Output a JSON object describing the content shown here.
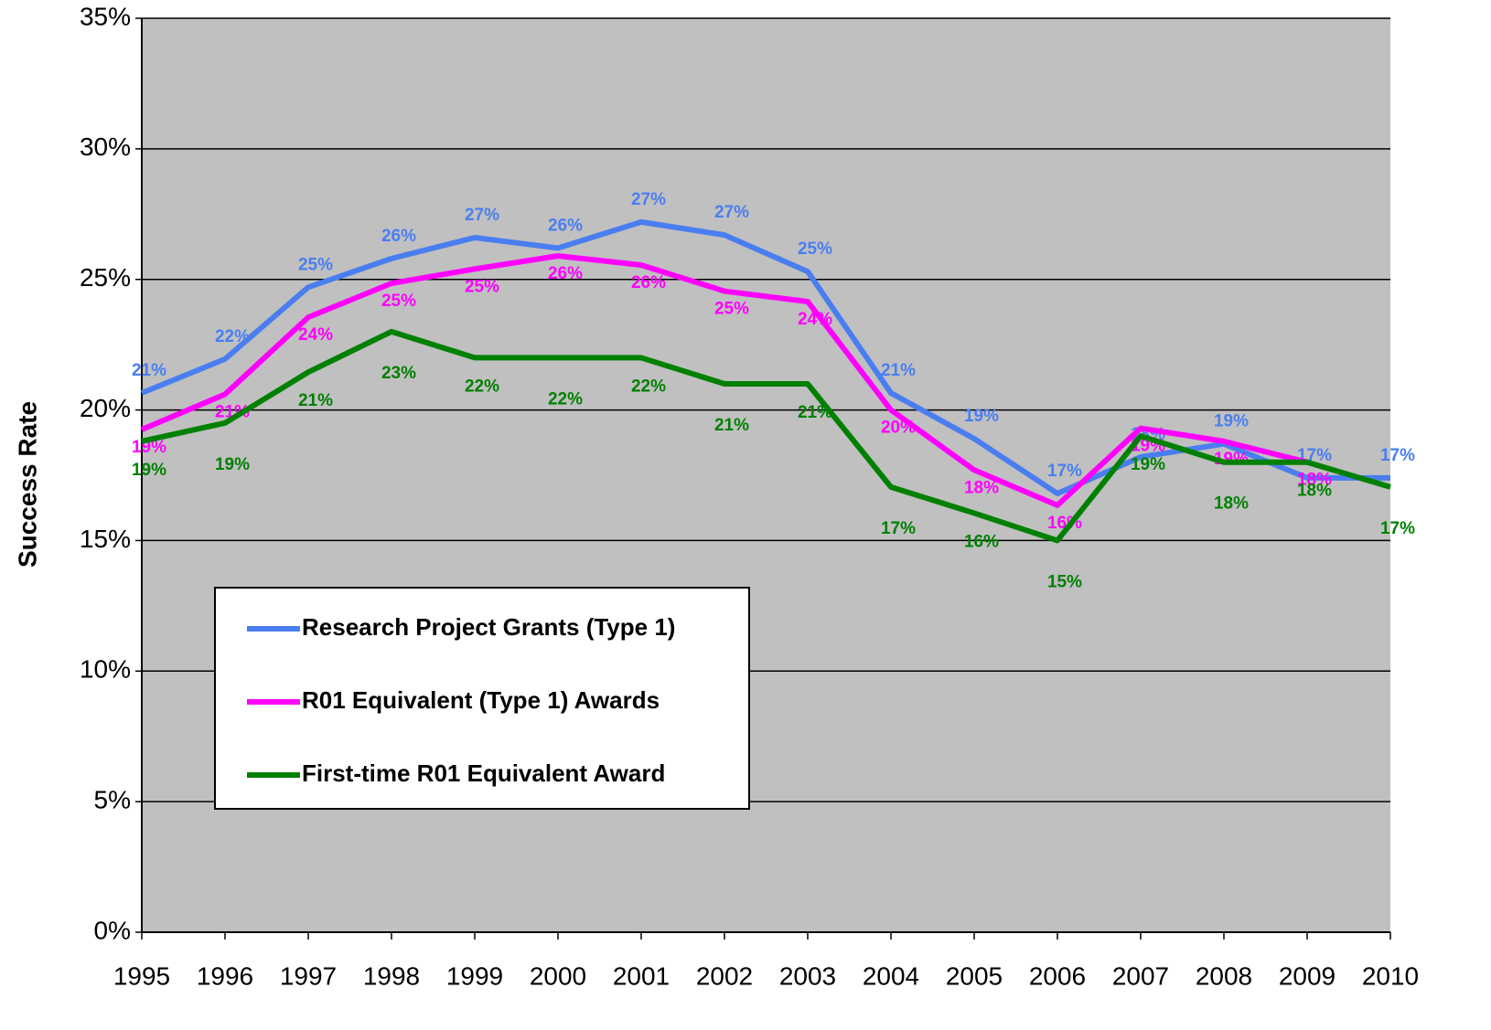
{
  "chart_data": {
    "type": "line",
    "y_label": "Success Rate",
    "x": [
      1995,
      1996,
      1997,
      1998,
      1999,
      2000,
      2001,
      2002,
      2003,
      2004,
      2005,
      2006,
      2007,
      2008,
      2009,
      2010
    ],
    "xlim": [
      1995,
      2010
    ],
    "xticks": [
      1995,
      1996,
      1997,
      1998,
      1999,
      2000,
      2001,
      2002,
      2003,
      2004,
      2005,
      2006,
      2007,
      2008,
      2009,
      2010
    ],
    "ylim": [
      0,
      35
    ],
    "yticks": [
      {
        "value": 0,
        "label": "0%"
      },
      {
        "value": 5,
        "label": "5%"
      },
      {
        "value": 10,
        "label": "10%"
      },
      {
        "value": 15,
        "label": "15%"
      },
      {
        "value": 20,
        "label": "20%"
      },
      {
        "value": 25,
        "label": "25%"
      },
      {
        "value": 30,
        "label": "30%"
      },
      {
        "value": 35,
        "label": "35%"
      }
    ],
    "grid": true,
    "series": [
      {
        "name": "Research Project Grants (Type 1)",
        "color": "#4a7ef0",
        "values": [
          20.65,
          21.95,
          24.7,
          25.8,
          26.6,
          26.2,
          27.2,
          26.7,
          25.3,
          20.65,
          18.9,
          16.8,
          18.2,
          18.7,
          17.4,
          17.4
        ],
        "value_labels": [
          "21%",
          "22%",
          "25%",
          "26%",
          "27%",
          "26%",
          "27%",
          "27%",
          "25%",
          "21%",
          "19%",
          "17%",
          "18%",
          "19%",
          "17%",
          "17%"
        ]
      },
      {
        "name": "R01 Equivalent (Type 1) Awards",
        "color": "#ff00ff",
        "values": [
          19.25,
          20.6,
          23.55,
          24.85,
          25.4,
          25.9,
          25.55,
          24.55,
          24.15,
          20,
          17.7,
          16.35,
          19.3,
          18.8,
          18,
          null
        ],
        "value_labels": [
          "19%",
          "21%",
          "24%",
          "25%",
          "25%",
          "26%",
          "26%",
          "25%",
          "24%",
          "20%",
          "18%",
          "16%",
          "19%",
          "19%",
          "18%",
          null
        ]
      },
      {
        "name": "First-time R01 Equivalent Award",
        "color": "#008000",
        "values": [
          18.8,
          19.5,
          21.45,
          23,
          22,
          22,
          22,
          21,
          21,
          17.05,
          16.05,
          15,
          19,
          18,
          18,
          17.05
        ],
        "value_labels": [
          "19%",
          "19%",
          "21%",
          "23%",
          "22%",
          "22%",
          "22%",
          "21%",
          "21%",
          "17%",
          "16%",
          "15%",
          "19%",
          "18%",
          "18%",
          "17%"
        ]
      }
    ]
  }
}
